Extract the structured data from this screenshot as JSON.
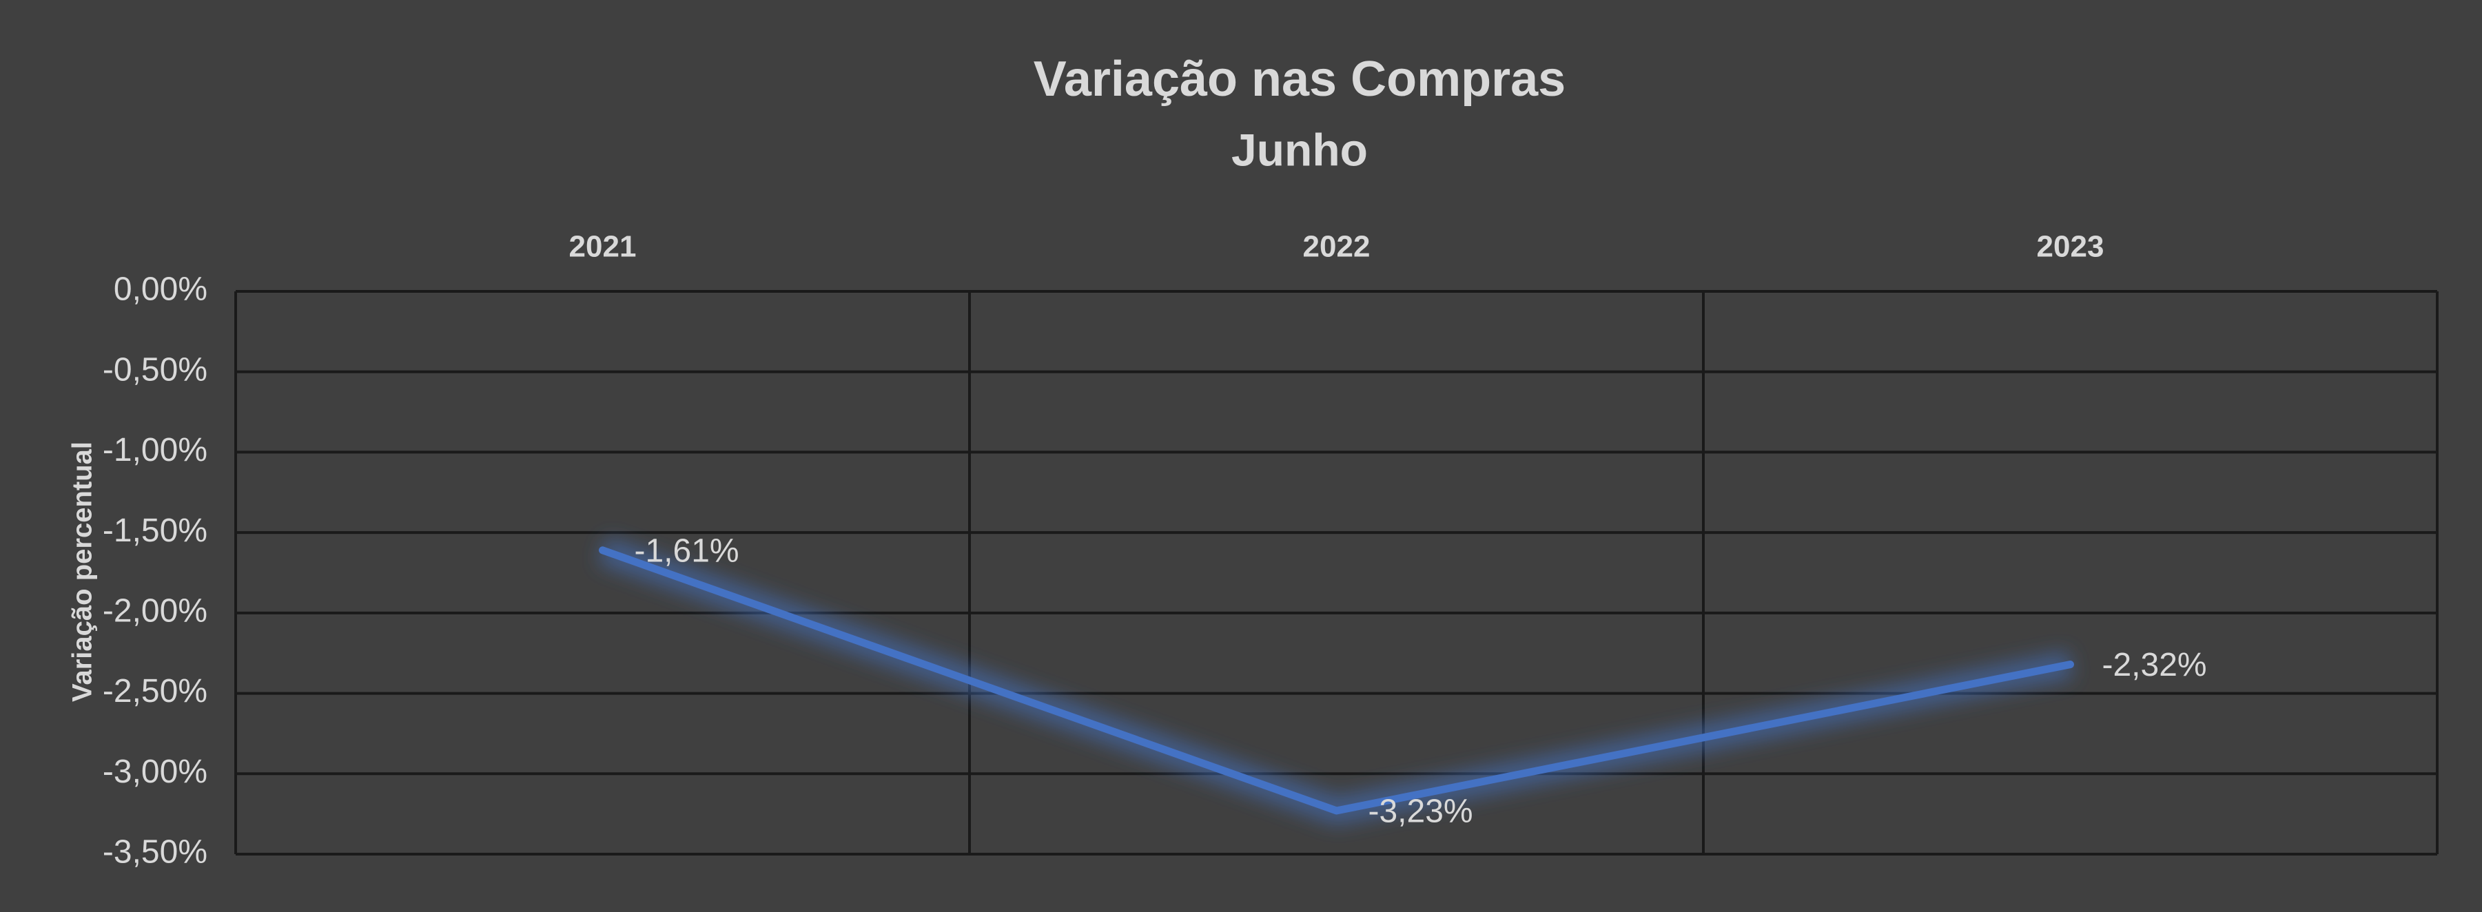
{
  "chart_data": {
    "type": "line",
    "title": "Variação nas Compras",
    "subtitle": "Junho",
    "y_axis_label": "Variação percentual",
    "categories": [
      "2021",
      "2022",
      "2023"
    ],
    "series": [
      {
        "name": "Variação",
        "color": "#4472c4",
        "values": [
          -1.61,
          -3.23,
          -2.32
        ],
        "value_labels": [
          "-1,61%",
          "-3,23%",
          "-2,32%"
        ]
      }
    ],
    "ylim": [
      -3.5,
      0
    ],
    "yticks": [
      {
        "value": 0,
        "label": "0,00%"
      },
      {
        "value": -0.5,
        "label": "-0,50%"
      },
      {
        "value": -1,
        "label": "-1,00%"
      },
      {
        "value": -1.5,
        "label": "-1,50%"
      },
      {
        "value": -2,
        "label": "-2,00%"
      },
      {
        "value": -2.5,
        "label": "-2,50%"
      },
      {
        "value": -3,
        "label": "-3,00%"
      },
      {
        "value": -3.5,
        "label": "-3,50%"
      }
    ],
    "grid": true
  }
}
